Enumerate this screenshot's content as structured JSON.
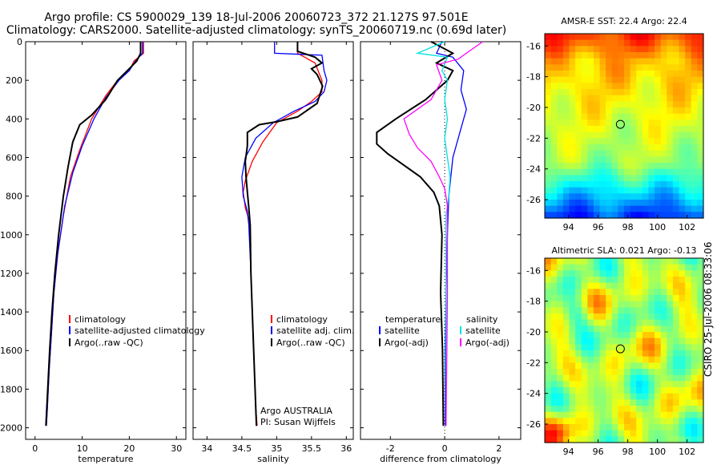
{
  "title": {
    "line1": "Argo profile: CS 5900029_139 18-Jul-2006 20060723_372 21.127S 97.501E",
    "line2": "Climatology: CARS2000. Satellite-adjusted climatology: synTS_20060719.nc (0.69d later)"
  },
  "side_stamp": "CSIRO 25-Jul-2006 08:33:06",
  "colors": {
    "clim": "#ff0000",
    "sat": "#0000ff",
    "argo": "#000000",
    "sal_sat": "#00e0e0",
    "sal_argo": "#ff00ff"
  },
  "chart_data": [
    {
      "type": "line",
      "id": "temperature",
      "xlabel": "temperature",
      "xlim": [
        -2,
        32
      ],
      "ylim": [
        0,
        2060
      ],
      "xticks": [
        0,
        10,
        20,
        30
      ],
      "yticks": [
        0,
        200,
        400,
        600,
        800,
        1000,
        1200,
        1400,
        1600,
        1800,
        2000
      ],
      "ytick_labels": [
        "0",
        "200",
        "400",
        "600",
        "800",
        "1000",
        "1200",
        "1400",
        "1600",
        "1800",
        "2000"
      ],
      "legend": [
        "climatology",
        "satellite-adjusted climatology",
        "Argo(..raw -QC)"
      ],
      "series": [
        {
          "name": "climatology",
          "color": "#ff0000",
          "points": [
            [
              23,
              0
            ],
            [
              23,
              60
            ],
            [
              21,
              100
            ],
            [
              20,
              150
            ],
            [
              17.5,
              200
            ],
            [
              15,
              280
            ],
            [
              12,
              400
            ],
            [
              9.5,
              560
            ],
            [
              7.5,
              700
            ],
            [
              6,
              900
            ],
            [
              4.8,
              1100
            ],
            [
              4,
              1300
            ],
            [
              3.5,
              1500
            ],
            [
              3,
              1700
            ],
            [
              2.6,
              1900
            ],
            [
              2.4,
              1990
            ]
          ]
        },
        {
          "name": "satellite-adjusted climatology",
          "color": "#0000ff",
          "points": [
            [
              22.8,
              0
            ],
            [
              22.8,
              60
            ],
            [
              21.3,
              100
            ],
            [
              20,
              150
            ],
            [
              17.8,
              200
            ],
            [
              15,
              290
            ],
            [
              12.5,
              400
            ],
            [
              10,
              540
            ],
            [
              8,
              680
            ],
            [
              6.3,
              850
            ],
            [
              4.8,
              1100
            ],
            [
              4,
              1300
            ],
            [
              3.5,
              1500
            ],
            [
              3,
              1700
            ],
            [
              2.6,
              1900
            ],
            [
              2.4,
              1990
            ]
          ]
        },
        {
          "name": "Argo(..raw -QC)",
          "color": "#000000",
          "points": [
            [
              22.4,
              0
            ],
            [
              22.4,
              60
            ],
            [
              21.6,
              100
            ],
            [
              20,
              140
            ],
            [
              17.5,
              200
            ],
            [
              15,
              300
            ],
            [
              12,
              380
            ],
            [
              10,
              420
            ],
            [
              9.5,
              430
            ],
            [
              8,
              520
            ],
            [
              7,
              650
            ],
            [
              6,
              800
            ],
            [
              5,
              1000
            ],
            [
              4.2,
              1200
            ],
            [
              3.6,
              1400
            ],
            [
              3.1,
              1600
            ],
            [
              2.7,
              1800
            ],
            [
              2.3,
              1990
            ]
          ]
        }
      ]
    },
    {
      "type": "line",
      "id": "salinity",
      "xlabel": "salinity",
      "xlim": [
        33.8,
        36.1
      ],
      "ylim": [
        0,
        2060
      ],
      "xticks": [
        34,
        34.5,
        35,
        35.5,
        36
      ],
      "xtick_labels": [
        "34",
        "34.5",
        "35",
        "35.5",
        "36"
      ],
      "legend": [
        "climatology",
        "satellite adj. clim.",
        "Argo(..raw -QC)"
      ],
      "annotation": [
        "Argo AUSTRALIA",
        "PI: Susan Wijffels"
      ],
      "series": [
        {
          "name": "climatology",
          "color": "#ff0000",
          "points": [
            [
              35.3,
              0
            ],
            [
              35.3,
              60
            ],
            [
              35.55,
              110
            ],
            [
              35.65,
              200
            ],
            [
              35.65,
              260
            ],
            [
              35.5,
              310
            ],
            [
              35.3,
              360
            ],
            [
              35.0,
              420
            ],
            [
              34.8,
              520
            ],
            [
              34.65,
              620
            ],
            [
              34.55,
              720
            ],
            [
              34.52,
              780
            ],
            [
              34.55,
              860
            ],
            [
              34.6,
              920
            ],
            [
              34.62,
              1050
            ],
            [
              34.64,
              1300
            ],
            [
              34.67,
              1600
            ],
            [
              34.7,
              1900
            ],
            [
              34.72,
              1990
            ]
          ]
        },
        {
          "name": "satellite adj. clim.",
          "color": "#0000ff",
          "points": [
            [
              34.97,
              0
            ],
            [
              34.97,
              60
            ],
            [
              35.65,
              70
            ],
            [
              35.68,
              150
            ],
            [
              35.72,
              200
            ],
            [
              35.68,
              260
            ],
            [
              35.55,
              310
            ],
            [
              35.25,
              360
            ],
            [
              34.95,
              420
            ],
            [
              34.7,
              500
            ],
            [
              34.55,
              600
            ],
            [
              34.5,
              700
            ],
            [
              34.52,
              800
            ],
            [
              34.58,
              880
            ],
            [
              34.6,
              950
            ],
            [
              34.63,
              1200
            ],
            [
              34.66,
              1500
            ],
            [
              34.69,
              1800
            ],
            [
              34.71,
              1990
            ]
          ]
        },
        {
          "name": "Argo(..raw -QC)",
          "color": "#000000",
          "points": [
            [
              35.3,
              0
            ],
            [
              35.3,
              50
            ],
            [
              35.55,
              80
            ],
            [
              35.65,
              110
            ],
            [
              35.5,
              140
            ],
            [
              35.58,
              170
            ],
            [
              35.66,
              230
            ],
            [
              35.58,
              320
            ],
            [
              35.3,
              390
            ],
            [
              35.0,
              415
            ],
            [
              34.75,
              430
            ],
            [
              34.58,
              470
            ],
            [
              34.58,
              540
            ],
            [
              34.55,
              620
            ],
            [
              34.56,
              700
            ],
            [
              34.58,
              780
            ],
            [
              34.6,
              860
            ],
            [
              34.62,
              950
            ],
            [
              34.63,
              1200
            ],
            [
              34.66,
              1500
            ],
            [
              34.69,
              1800
            ],
            [
              34.71,
              1990
            ]
          ]
        }
      ]
    },
    {
      "type": "line",
      "id": "difference",
      "xlabel": "difference from climatology",
      "xlim": [
        -3.1,
        2.8
      ],
      "ylim": [
        0,
        2060
      ],
      "xticks": [
        -2,
        0,
        2
      ],
      "xtick_labels": [
        "-2",
        "0",
        "2"
      ],
      "legend_left_title": "temperature",
      "legend_right_title": "salinity",
      "legend": [
        "satellite",
        "Argo(-adj)",
        "satellite",
        "Argo(-adj)"
      ],
      "series": [
        {
          "name": "temperature satellite",
          "color": "#0000ff",
          "points": [
            [
              -0.1,
              0
            ],
            [
              -0.3,
              60
            ],
            [
              0.3,
              80
            ],
            [
              0.7,
              150
            ],
            [
              0.6,
              250
            ],
            [
              0.8,
              350
            ],
            [
              0.6,
              450
            ],
            [
              0.3,
              600
            ],
            [
              0.15,
              800
            ],
            [
              0.1,
              1000
            ],
            [
              0.05,
              1300
            ],
            [
              0.02,
              1600
            ],
            [
              0.02,
              1990
            ]
          ]
        },
        {
          "name": "temperature Argo(-adj)",
          "color": "#000000",
          "points": [
            [
              -0.5,
              0
            ],
            [
              0.3,
              60
            ],
            [
              -0.3,
              110
            ],
            [
              0.3,
              150
            ],
            [
              0.1,
              200
            ],
            [
              -0.7,
              300
            ],
            [
              -1.8,
              400
            ],
            [
              -2.5,
              470
            ],
            [
              -2.5,
              530
            ],
            [
              -2.1,
              580
            ],
            [
              -1.5,
              640
            ],
            [
              -0.9,
              700
            ],
            [
              -0.4,
              780
            ],
            [
              -0.2,
              850
            ],
            [
              -0.1,
              1000
            ],
            [
              -0.15,
              1300
            ],
            [
              -0.08,
              1600
            ],
            [
              -0.05,
              1990
            ]
          ]
        },
        {
          "name": "salinity satellite",
          "color": "#00e0e0",
          "points": [
            [
              0,
              0
            ],
            [
              -1,
              60
            ],
            [
              0.1,
              80
            ],
            [
              -0.1,
              150
            ],
            [
              0.1,
              200
            ],
            [
              0,
              300
            ],
            [
              0.1,
              400
            ],
            [
              0,
              500
            ],
            [
              0.1,
              600
            ],
            [
              0.2,
              700
            ],
            [
              0.15,
              800
            ],
            [
              0.05,
              900
            ],
            [
              0.05,
              1300
            ],
            [
              0.05,
              1990
            ]
          ]
        },
        {
          "name": "salinity Argo(-adj)",
          "color": "#ff00ff",
          "points": [
            [
              1.4,
              0
            ],
            [
              0.8,
              60
            ],
            [
              0.5,
              90
            ],
            [
              -0.3,
              120
            ],
            [
              -0.1,
              200
            ],
            [
              -0.5,
              300
            ],
            [
              -1.5,
              400
            ],
            [
              -1.3,
              480
            ],
            [
              -1.0,
              550
            ],
            [
              -0.5,
              620
            ],
            [
              -0.2,
              700
            ],
            [
              0,
              760
            ],
            [
              0.1,
              850
            ],
            [
              0.1,
              1000
            ],
            [
              0.1,
              1300
            ],
            [
              0.08,
              1600
            ],
            [
              0.05,
              1990
            ]
          ]
        }
      ]
    },
    {
      "type": "heatmap",
      "id": "sst-map",
      "title": "AMSR-E SST: 22.4  Argo: 22.4",
      "xticks": [
        94,
        96,
        98,
        100,
        102
      ],
      "yticks": [
        -16,
        -18,
        -20,
        -22,
        -24,
        -26
      ],
      "xlim": [
        92.4,
        103.1
      ],
      "ylim": [
        -27.2,
        -15.2
      ],
      "marker": [
        97.5,
        -21.1
      ]
    },
    {
      "type": "heatmap",
      "id": "sla-map",
      "title": "Altimetric SLA: 0.021  Argo: -0.13",
      "xticks": [
        94,
        96,
        98,
        100,
        102
      ],
      "yticks": [
        -16,
        -18,
        -20,
        -22,
        -24,
        -26
      ],
      "xlim": [
        92.4,
        103.1
      ],
      "ylim": [
        -27.2,
        -15.2
      ],
      "marker": [
        97.5,
        -21.1
      ]
    }
  ]
}
